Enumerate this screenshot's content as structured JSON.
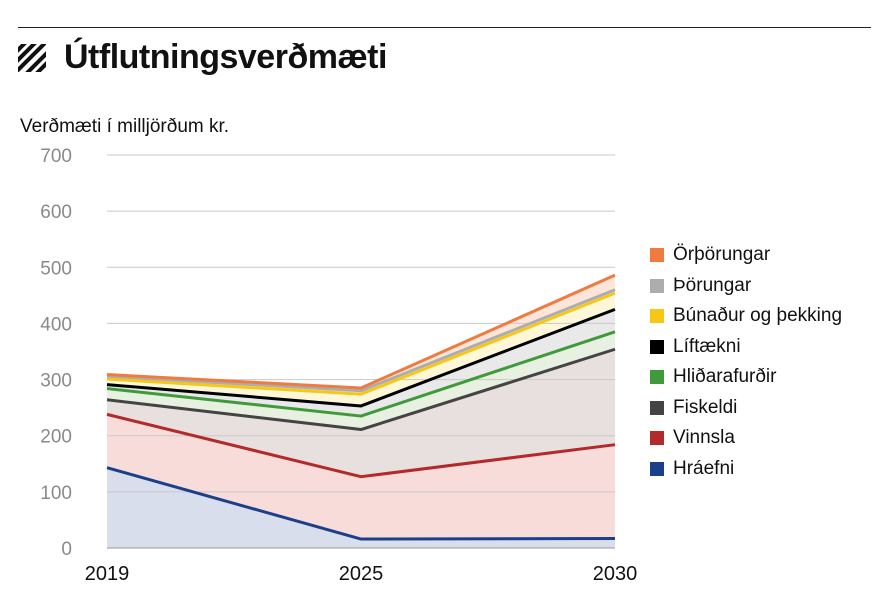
{
  "header": {
    "title": "Útflutningsverðmæti"
  },
  "chart_data": {
    "type": "area",
    "title": "Útflutningsverðmæti",
    "ylabel": "Verðmæti í milljörðum kr.",
    "xlabel": "",
    "x": [
      "2019",
      "2025",
      "2030"
    ],
    "ylim": [
      0,
      700
    ],
    "yticks": [
      "0",
      "100",
      "200",
      "300",
      "400",
      "500",
      "600",
      "700"
    ],
    "grid": true,
    "stacked": true,
    "legend_position": "right",
    "series": [
      {
        "name": "Hráefni",
        "values": [
          143,
          16,
          17
        ],
        "line_color": "#1c3f8c",
        "fill_color": "#d9deec"
      },
      {
        "name": "Vinnsla",
        "values": [
          95,
          111,
          167
        ],
        "line_color": "#b32a2a",
        "fill_color": "#f7dcda"
      },
      {
        "name": "Fiskeldi",
        "values": [
          26,
          84,
          170
        ],
        "line_color": "#444444",
        "fill_color": "#e7e0df"
      },
      {
        "name": "Hliðarafurðir",
        "values": [
          20,
          24,
          31
        ],
        "line_color": "#3f9a3a",
        "fill_color": "#e7f0e1"
      },
      {
        "name": "Líftækni",
        "values": [
          7,
          18,
          40
        ],
        "line_color": "#000000",
        "fill_color": "#e9e9e9"
      },
      {
        "name": "Búnaður og þekking",
        "values": [
          10,
          21,
          29
        ],
        "line_color": "#f6c815",
        "fill_color": "#fff7d8"
      },
      {
        "name": "Þörungar",
        "values": [
          5,
          6,
          6
        ],
        "line_color": "#adadad",
        "fill_color": "#efefef"
      },
      {
        "name": "Örþörungar",
        "values": [
          3,
          5,
          26
        ],
        "line_color": "#f07b3f",
        "fill_color": "#fde6d9"
      }
    ]
  }
}
